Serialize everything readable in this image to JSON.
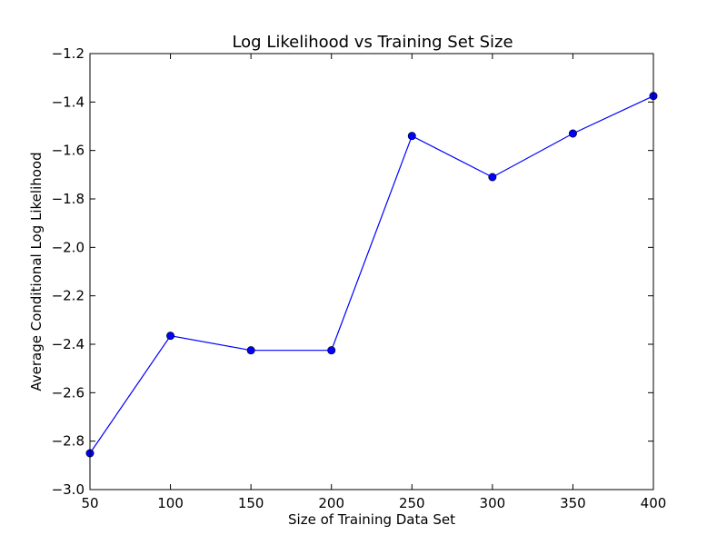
{
  "chart_data": {
    "type": "line",
    "title": "Log Likelihood vs Training Set Size",
    "xlabel": "Size of Training Data Set",
    "ylabel": "Average Conditional Log Likelihood",
    "xlim": [
      50,
      400
    ],
    "ylim": [
      -3.0,
      -1.2
    ],
    "xticks": [
      50,
      100,
      150,
      200,
      250,
      300,
      350,
      400
    ],
    "yticks": [
      -3.0,
      -2.8,
      -2.6,
      -2.4,
      -2.2,
      -2.0,
      -1.8,
      -1.6,
      -1.4,
      -1.2
    ],
    "xtick_labels": [
      "50",
      "100",
      "150",
      "200",
      "250",
      "300",
      "350",
      "400"
    ],
    "ytick_labels": [
      "−3.0",
      "−2.8",
      "−2.6",
      "−2.4",
      "−2.2",
      "−2.0",
      "−1.8",
      "−1.6",
      "−1.4",
      "−1.2"
    ],
    "grid": false,
    "series": [
      {
        "x": [
          50,
          100,
          150,
          200,
          250,
          300,
          350,
          400
        ],
        "y": [
          -2.85,
          -2.365,
          -2.425,
          -2.425,
          -1.54,
          -1.71,
          -1.53,
          -1.375
        ],
        "color": "#0000ff",
        "marker": "circle"
      }
    ]
  }
}
